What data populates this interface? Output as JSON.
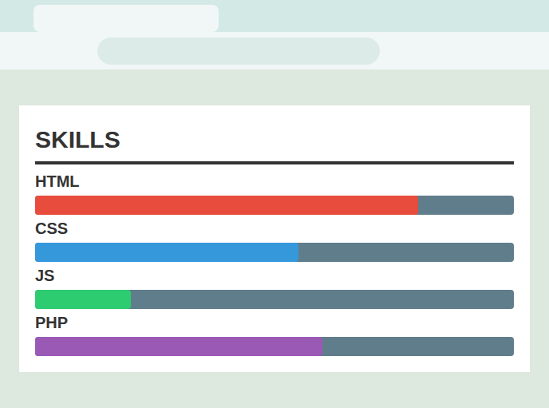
{
  "chart_data": {
    "type": "bar",
    "orientation": "horizontal",
    "title": "SKILLS",
    "categories": [
      "HTML",
      "CSS",
      "JS",
      "PHP"
    ],
    "values": [
      80,
      55,
      20,
      60
    ],
    "colors": [
      "#e74c3c",
      "#3498db",
      "#2ecc71",
      "#9b59b6"
    ],
    "xlim": [
      0,
      100
    ],
    "tick_labels": false,
    "grid": false
  }
}
